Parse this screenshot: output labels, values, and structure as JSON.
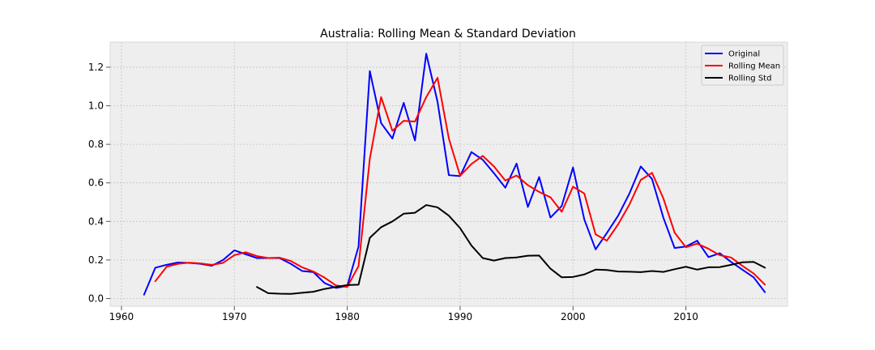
{
  "chart_data": {
    "type": "line",
    "title": "Australia: Rolling Mean & Standard Deviation",
    "xlabel": "",
    "ylabel": "",
    "xlim": [
      1959,
      2019
    ],
    "ylim": [
      -0.04,
      1.33
    ],
    "xticks": [
      1960,
      1970,
      1980,
      1990,
      2000,
      2010
    ],
    "yticks": [
      0.0,
      0.2,
      0.4,
      0.6,
      0.8,
      1.0,
      1.2
    ],
    "grid": true,
    "legend_position": "top-right",
    "series": [
      {
        "name": "Original",
        "color": "#0000ff",
        "points": [
          [
            1962,
            0.02
          ],
          [
            1963,
            0.16
          ],
          [
            1964,
            0.175
          ],
          [
            1965,
            0.187
          ],
          [
            1966,
            0.185
          ],
          [
            1967,
            0.18
          ],
          [
            1968,
            0.17
          ],
          [
            1969,
            0.2
          ],
          [
            1970,
            0.25
          ],
          [
            1971,
            0.23
          ],
          [
            1972,
            0.21
          ],
          [
            1973,
            0.21
          ],
          [
            1974,
            0.21
          ],
          [
            1975,
            0.18
          ],
          [
            1976,
            0.143
          ],
          [
            1977,
            0.137
          ],
          [
            1978,
            0.08
          ],
          [
            1979,
            0.055
          ],
          [
            1980,
            0.065
          ],
          [
            1981,
            0.27
          ],
          [
            1982,
            1.18
          ],
          [
            1983,
            0.91
          ],
          [
            1984,
            0.83
          ],
          [
            1985,
            1.015
          ],
          [
            1986,
            0.82
          ],
          [
            1987,
            1.27
          ],
          [
            1988,
            1.02
          ],
          [
            1989,
            0.64
          ],
          [
            1990,
            0.635
          ],
          [
            1991,
            0.76
          ],
          [
            1992,
            0.72
          ],
          [
            1993,
            0.65
          ],
          [
            1994,
            0.575
          ],
          [
            1995,
            0.7
          ],
          [
            1996,
            0.475
          ],
          [
            1997,
            0.63
          ],
          [
            1998,
            0.42
          ],
          [
            1999,
            0.48
          ],
          [
            2000,
            0.68
          ],
          [
            2001,
            0.41
          ],
          [
            2002,
            0.255
          ],
          [
            2003,
            0.34
          ],
          [
            2004,
            0.43
          ],
          [
            2005,
            0.545
          ],
          [
            2006,
            0.685
          ],
          [
            2007,
            0.62
          ],
          [
            2008,
            0.42
          ],
          [
            2009,
            0.262
          ],
          [
            2010,
            0.27
          ],
          [
            2011,
            0.3
          ],
          [
            2012,
            0.215
          ],
          [
            2013,
            0.235
          ],
          [
            2014,
            0.19
          ],
          [
            2015,
            0.15
          ],
          [
            2016,
            0.11
          ],
          [
            2017,
            0.033
          ]
        ]
      },
      {
        "name": "Rolling Mean",
        "color": "#ff0000",
        "points": [
          [
            1963,
            0.09
          ],
          [
            1964,
            0.165
          ],
          [
            1965,
            0.18
          ],
          [
            1966,
            0.186
          ],
          [
            1967,
            0.182
          ],
          [
            1968,
            0.175
          ],
          [
            1969,
            0.185
          ],
          [
            1970,
            0.225
          ],
          [
            1971,
            0.24
          ],
          [
            1972,
            0.22
          ],
          [
            1973,
            0.21
          ],
          [
            1974,
            0.212
          ],
          [
            1975,
            0.195
          ],
          [
            1976,
            0.162
          ],
          [
            1977,
            0.14
          ],
          [
            1978,
            0.108
          ],
          [
            1979,
            0.068
          ],
          [
            1980,
            0.06
          ],
          [
            1981,
            0.168
          ],
          [
            1982,
            0.725
          ],
          [
            1983,
            1.045
          ],
          [
            1984,
            0.87
          ],
          [
            1985,
            0.922
          ],
          [
            1986,
            0.918
          ],
          [
            1987,
            1.045
          ],
          [
            1988,
            1.145
          ],
          [
            1989,
            0.83
          ],
          [
            1990,
            0.637
          ],
          [
            1991,
            0.698
          ],
          [
            1992,
            0.74
          ],
          [
            1993,
            0.685
          ],
          [
            1994,
            0.612
          ],
          [
            1995,
            0.638
          ],
          [
            1996,
            0.588
          ],
          [
            1997,
            0.553
          ],
          [
            1998,
            0.525
          ],
          [
            1999,
            0.45
          ],
          [
            2000,
            0.58
          ],
          [
            2001,
            0.545
          ],
          [
            2002,
            0.333
          ],
          [
            2003,
            0.3
          ],
          [
            2004,
            0.385
          ],
          [
            2005,
            0.488
          ],
          [
            2006,
            0.615
          ],
          [
            2007,
            0.652
          ],
          [
            2008,
            0.52
          ],
          [
            2009,
            0.342
          ],
          [
            2010,
            0.266
          ],
          [
            2011,
            0.285
          ],
          [
            2012,
            0.258
          ],
          [
            2013,
            0.225
          ],
          [
            2014,
            0.213
          ],
          [
            2015,
            0.17
          ],
          [
            2016,
            0.13
          ],
          [
            2017,
            0.072
          ]
        ]
      },
      {
        "name": "Rolling Std",
        "color": "#000000",
        "points": [
          [
            1972,
            0.06
          ],
          [
            1973,
            0.028
          ],
          [
            1974,
            0.025
          ],
          [
            1975,
            0.024
          ],
          [
            1976,
            0.03
          ],
          [
            1977,
            0.035
          ],
          [
            1978,
            0.05
          ],
          [
            1979,
            0.06
          ],
          [
            1980,
            0.07
          ],
          [
            1981,
            0.072
          ],
          [
            1982,
            0.315
          ],
          [
            1983,
            0.37
          ],
          [
            1984,
            0.4
          ],
          [
            1985,
            0.44
          ],
          [
            1986,
            0.445
          ],
          [
            1987,
            0.485
          ],
          [
            1988,
            0.473
          ],
          [
            1989,
            0.43
          ],
          [
            1990,
            0.365
          ],
          [
            1991,
            0.275
          ],
          [
            1992,
            0.21
          ],
          [
            1993,
            0.197
          ],
          [
            1994,
            0.21
          ],
          [
            1995,
            0.213
          ],
          [
            1996,
            0.222
          ],
          [
            1997,
            0.223
          ],
          [
            1998,
            0.155
          ],
          [
            1999,
            0.11
          ],
          [
            2000,
            0.112
          ],
          [
            2001,
            0.125
          ],
          [
            2002,
            0.15
          ],
          [
            2003,
            0.148
          ],
          [
            2004,
            0.14
          ],
          [
            2005,
            0.139
          ],
          [
            2006,
            0.137
          ],
          [
            2007,
            0.143
          ],
          [
            2008,
            0.138
          ],
          [
            2009,
            0.152
          ],
          [
            2010,
            0.165
          ],
          [
            2011,
            0.15
          ],
          [
            2012,
            0.162
          ],
          [
            2013,
            0.163
          ],
          [
            2014,
            0.175
          ],
          [
            2015,
            0.188
          ],
          [
            2016,
            0.19
          ],
          [
            2017,
            0.16
          ]
        ]
      }
    ]
  }
}
